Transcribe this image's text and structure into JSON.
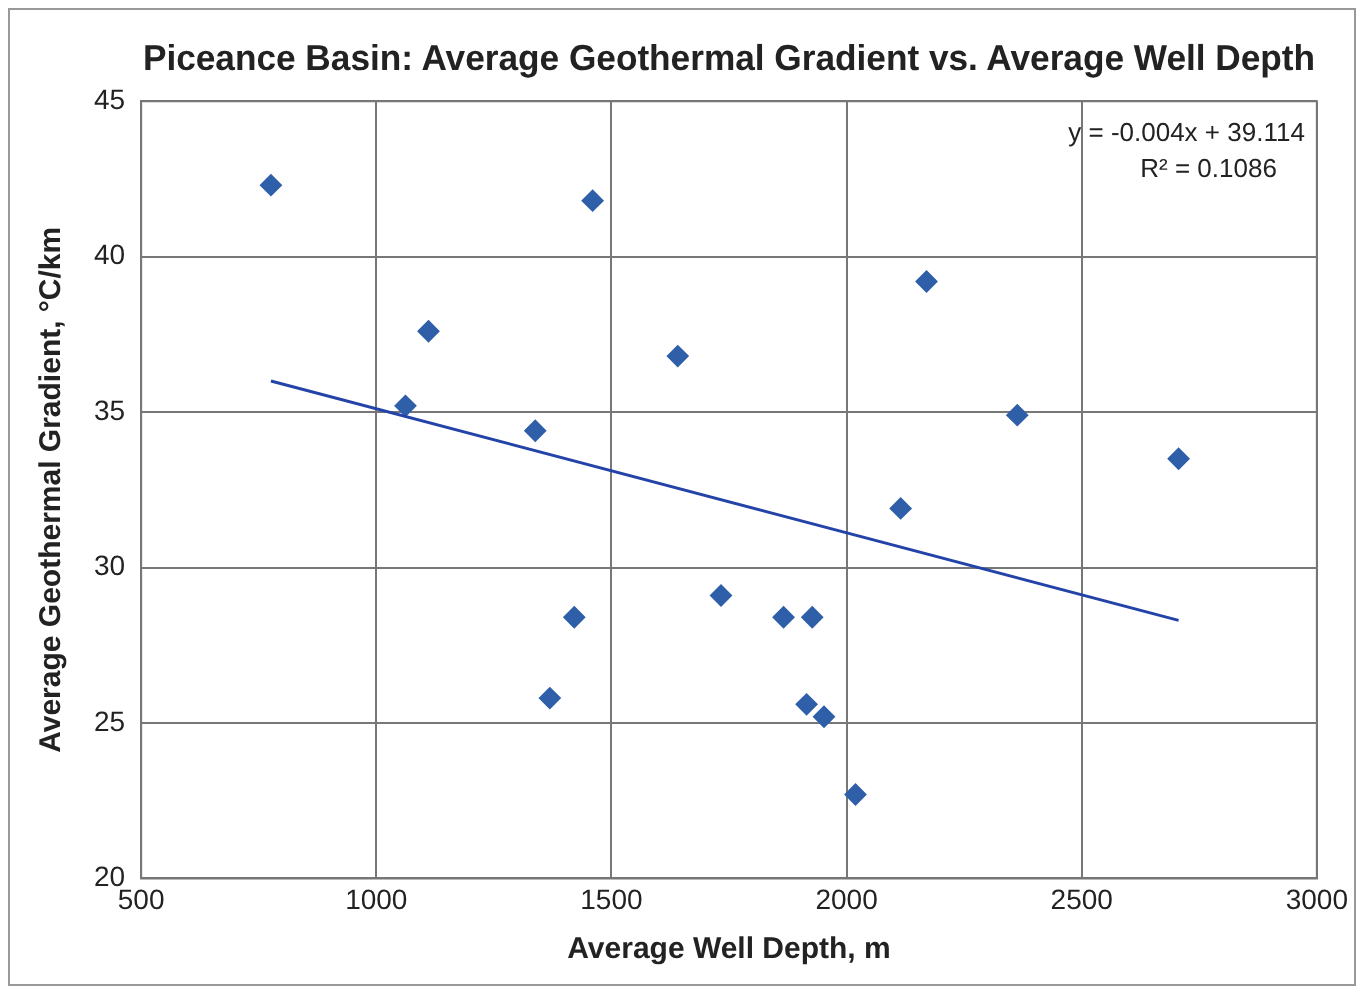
{
  "chart_data": {
    "type": "scatter",
    "title": "Piceance Basin: Average Geothermal Gradient vs. Average Well Depth",
    "xlabel": "Average Well Depth, m",
    "ylabel": "Average Geothermal Gradient, °C/km",
    "x": [
      776,
      1460,
      1111,
      1641,
      1062,
      1338,
      1733,
      1421,
      1369,
      1866,
      1927,
      1915,
      1952,
      2019,
      2115,
      2170,
      2363,
      2706
    ],
    "series": [
      {
        "color": "#2e5fa8",
        "marker": "diamond",
        "values": [
          42.3,
          41.8,
          37.6,
          36.8,
          35.2,
          34.4,
          29.1,
          28.4,
          25.8,
          28.4,
          28.4,
          25.6,
          25.2,
          22.7,
          31.9,
          39.2,
          34.9,
          33.5
        ]
      },
      {
        "type": "line",
        "color": "#2443a8",
        "marker": "none",
        "line_style": "solid",
        "x": [
          776,
          2706
        ],
        "values": [
          36.0,
          28.3
        ]
      }
    ],
    "annotations": [
      "y = -0.004x + 39.114",
      "R² = 0.1086"
    ],
    "xlim": [
      500,
      3000
    ],
    "xticks": [
      500,
      1000,
      1500,
      2000,
      2500,
      3000
    ],
    "ylim": [
      20,
      45
    ],
    "yticks": [
      20,
      25,
      30,
      35,
      40,
      45
    ],
    "grid": true,
    "legend": false
  }
}
